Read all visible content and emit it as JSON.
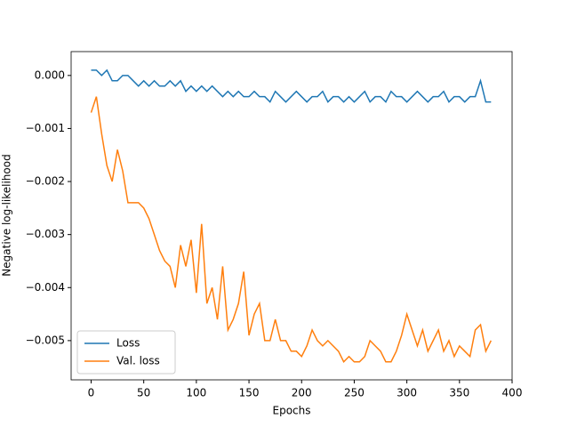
{
  "chart_data": {
    "type": "line",
    "xlabel": "Epochs",
    "ylabel": "Negative log-likelihood",
    "x": [
      0,
      5,
      10,
      15,
      20,
      25,
      30,
      35,
      40,
      45,
      50,
      55,
      60,
      65,
      70,
      75,
      80,
      85,
      90,
      95,
      100,
      105,
      110,
      115,
      120,
      125,
      130,
      135,
      140,
      145,
      150,
      155,
      160,
      165,
      170,
      175,
      180,
      185,
      190,
      195,
      200,
      205,
      210,
      215,
      220,
      225,
      230,
      235,
      240,
      245,
      250,
      255,
      260,
      265,
      270,
      275,
      280,
      285,
      290,
      295,
      300,
      305,
      310,
      315,
      320,
      325,
      330,
      335,
      340,
      345,
      350,
      355,
      360,
      365,
      370,
      375,
      380
    ],
    "series": [
      {
        "name": "Loss",
        "color": "#1f77b4",
        "values": [
          0.0001,
          0.0001,
          0.0,
          0.0001,
          -0.0001,
          -0.0001,
          0.0,
          0.0,
          -0.0001,
          -0.0002,
          -0.0001,
          -0.0002,
          -0.0001,
          -0.0002,
          -0.0002,
          -0.0001,
          -0.0002,
          -0.0001,
          -0.0003,
          -0.0002,
          -0.0003,
          -0.0002,
          -0.0003,
          -0.0002,
          -0.0003,
          -0.0004,
          -0.0003,
          -0.0004,
          -0.0003,
          -0.0004,
          -0.0004,
          -0.0003,
          -0.0004,
          -0.0004,
          -0.0005,
          -0.0003,
          -0.0004,
          -0.0005,
          -0.0004,
          -0.0003,
          -0.0004,
          -0.0005,
          -0.0004,
          -0.0004,
          -0.0003,
          -0.0005,
          -0.0004,
          -0.0004,
          -0.0005,
          -0.0004,
          -0.0005,
          -0.0004,
          -0.0003,
          -0.0005,
          -0.0004,
          -0.0004,
          -0.0005,
          -0.0003,
          -0.0004,
          -0.0004,
          -0.0005,
          -0.0004,
          -0.0003,
          -0.0004,
          -0.0005,
          -0.0004,
          -0.0004,
          -0.0003,
          -0.0005,
          -0.0004,
          -0.0004,
          -0.0005,
          -0.0004,
          -0.0004,
          -0.0001,
          -0.0005,
          -0.0005
        ]
      },
      {
        "name": "Val. loss",
        "color": "#ff7f0e",
        "values": [
          -0.0007,
          -0.0004,
          -0.0011,
          -0.0017,
          -0.002,
          -0.0014,
          -0.0018,
          -0.0024,
          -0.0024,
          -0.0024,
          -0.0025,
          -0.0027,
          -0.003,
          -0.0033,
          -0.0035,
          -0.0036,
          -0.004,
          -0.0032,
          -0.0036,
          -0.0031,
          -0.0041,
          -0.0028,
          -0.0043,
          -0.004,
          -0.0046,
          -0.0036,
          -0.0048,
          -0.0046,
          -0.0043,
          -0.0037,
          -0.0049,
          -0.0045,
          -0.0043,
          -0.005,
          -0.005,
          -0.0046,
          -0.005,
          -0.005,
          -0.0052,
          -0.0052,
          -0.0053,
          -0.0051,
          -0.0048,
          -0.005,
          -0.0051,
          -0.005,
          -0.0051,
          -0.0052,
          -0.0054,
          -0.0053,
          -0.0054,
          -0.0054,
          -0.0053,
          -0.005,
          -0.0051,
          -0.0052,
          -0.0054,
          -0.0054,
          -0.0052,
          -0.0049,
          -0.0045,
          -0.0048,
          -0.0051,
          -0.0048,
          -0.0052,
          -0.005,
          -0.0048,
          -0.0052,
          -0.005,
          -0.0053,
          -0.0051,
          -0.0052,
          -0.0053,
          -0.0048,
          -0.0047,
          -0.0052,
          -0.005
        ]
      }
    ],
    "xlim": [
      -19,
      400
    ],
    "xticks": [
      0,
      50,
      100,
      150,
      200,
      250,
      300,
      350,
      400
    ],
    "ylim": [
      -0.00574,
      0.00045
    ],
    "yticks": [
      {
        "value": 0,
        "label": "0.000"
      },
      {
        "value": -0.001,
        "label": "−0.001"
      },
      {
        "value": -0.002,
        "label": "−0.002"
      },
      {
        "value": -0.003,
        "label": "−0.003"
      },
      {
        "value": -0.004,
        "label": "−0.004"
      },
      {
        "value": -0.005,
        "label": "−0.005"
      }
    ],
    "legend": "lower left"
  }
}
